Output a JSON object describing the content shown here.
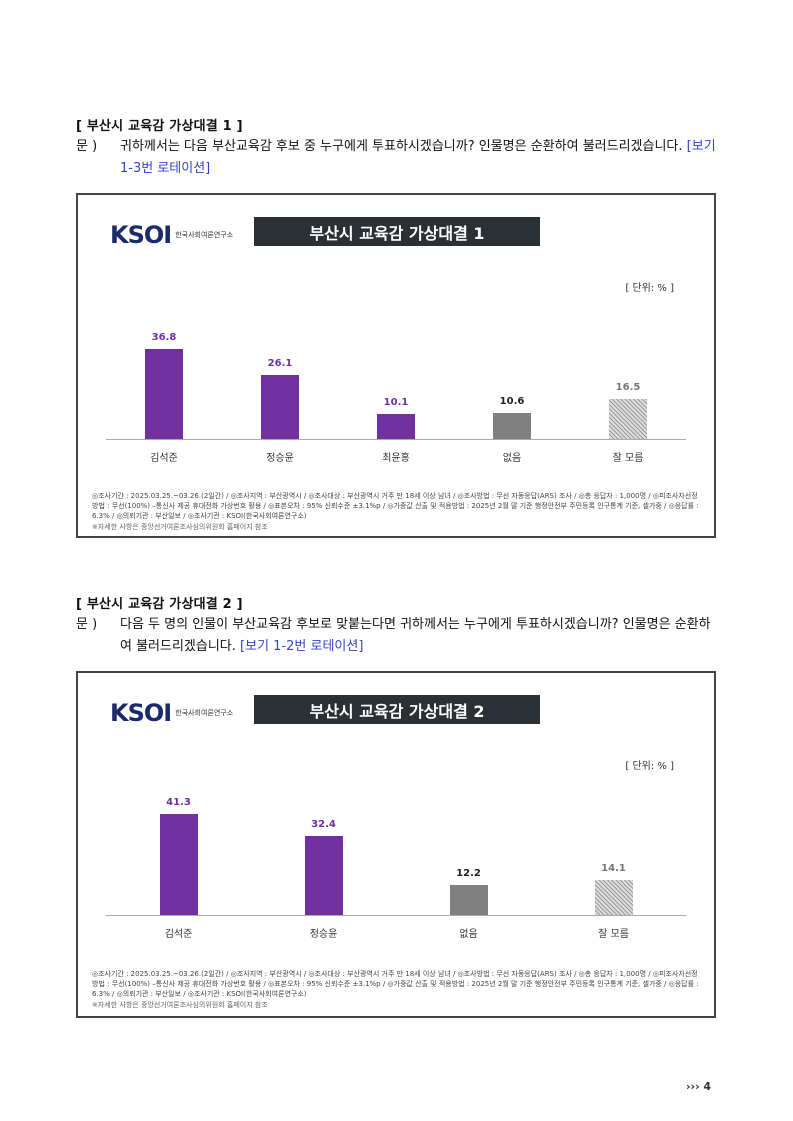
{
  "section1": {
    "heading": "[ 부산시 교육감 가상대결 1 ]",
    "q_label": "문 )",
    "q_text": "귀하께서는 다음 부산교육감 후보 중 누구에게 투표하시겠습니까? 인물명은 순환하여 불러드리겠습니다.",
    "q_note": "[보기 1-3번 로테이션]"
  },
  "chart1": {
    "logo": "KSOI",
    "logo_sub": "한국사회여론연구소",
    "title": "부산시 교육감 가상대결 1",
    "unit": "[ 단위: % ]",
    "footnote": "◎조사기간 : 2025.03.25.~03.26.(2일간) / ◎조사지역 : 부산광역시 / ◎조사대상 : 부산광역시 거주 만 18세 이상 남녀 / ◎조사방법 : 무선 자동응답(ARS) 조사 / ◎총 응답자 : 1,000명 / ◎피조사자선정방법 : 무선(100%) –통신사 제공 휴대전화 가상번호 활용 / ◎표본오차 : 95% 신뢰수준 ±3.1%p / ◎가중값 산출 및 적용방법 : 2025년 2월 말 기준 행정안전부 주민등록 인구통계 기준, 셀가중 / ◎응답률 : 6.3% / ◎의뢰기관 : 부산일보 / ◎조사기관 : KSOI(한국사회여론연구소)",
    "footnote2": "※자세한 사항은 중앙선거여론조사심의위원회 홈페이지 참조"
  },
  "section2": {
    "heading": "[ 부산시 교육감 가상대결 2 ]",
    "q_label": "문 )",
    "q_text": "다음 두 명의 인물이 부산교육감 후보로 맞붙는다면 귀하께서는 누구에게 투표하시겠습니까? 인물명은 순환하여 불러드리겠습니다.",
    "q_note": "[보기 1-2번 로테이션]"
  },
  "chart2": {
    "logo": "KSOI",
    "logo_sub": "한국사회여론연구소",
    "title": "부산시 교육감 가상대결 2",
    "unit": "[ 단위: % ]",
    "footnote": "◎조사기간 : 2025.03.25.~03.26.(2일간) / ◎조사지역 : 부산광역시 / ◎조사대상 : 부산광역시 거주 만 18세 이상 남녀 / ◎조사방법 : 무선 자동응답(ARS) 조사 / ◎총 응답자 : 1,000명 / ◎피조사자선정방법 : 무선(100%) –통신사 제공 휴대전화 가상번호 활용 / ◎표본오차 : 95% 신뢰수준 ±3.1%p / ◎가중값 산출 및 적용방법 : 2025년 2월 말 기준 행정안전부 주민등록 인구통계 기준, 셀가중 / ◎응답률 : 6.3% / ◎의뢰기관 : 부산일보 / ◎조사기관 : KSOI(한국사회여론연구소)",
    "footnote2": "※자세한 사항은 중앙선거여론조사심의위원회 홈페이지 참조"
  },
  "page_number": "››› 4",
  "chart_data": [
    {
      "type": "bar",
      "title": "부산시 교육감 가상대결 1",
      "unit": "[ 단위: % ]",
      "categories": [
        "김석준",
        "정승윤",
        "최윤홍",
        "없음",
        "잘 모름"
      ],
      "values": [
        36.8,
        26.1,
        10.1,
        10.6,
        16.5
      ],
      "colors": [
        "#7030a0",
        "#7030a0",
        "#7030a0",
        "#808080",
        "hatch"
      ],
      "ylim": [
        0,
        45
      ]
    },
    {
      "type": "bar",
      "title": "부산시 교육감 가상대결 2",
      "unit": "[ 단위: % ]",
      "categories": [
        "김석준",
        "정승윤",
        "없음",
        "잘 모름"
      ],
      "values": [
        41.3,
        32.4,
        12.2,
        14.1
      ],
      "colors": [
        "#7030a0",
        "#7030a0",
        "#808080",
        "hatch"
      ],
      "ylim": [
        0,
        45
      ]
    }
  ]
}
